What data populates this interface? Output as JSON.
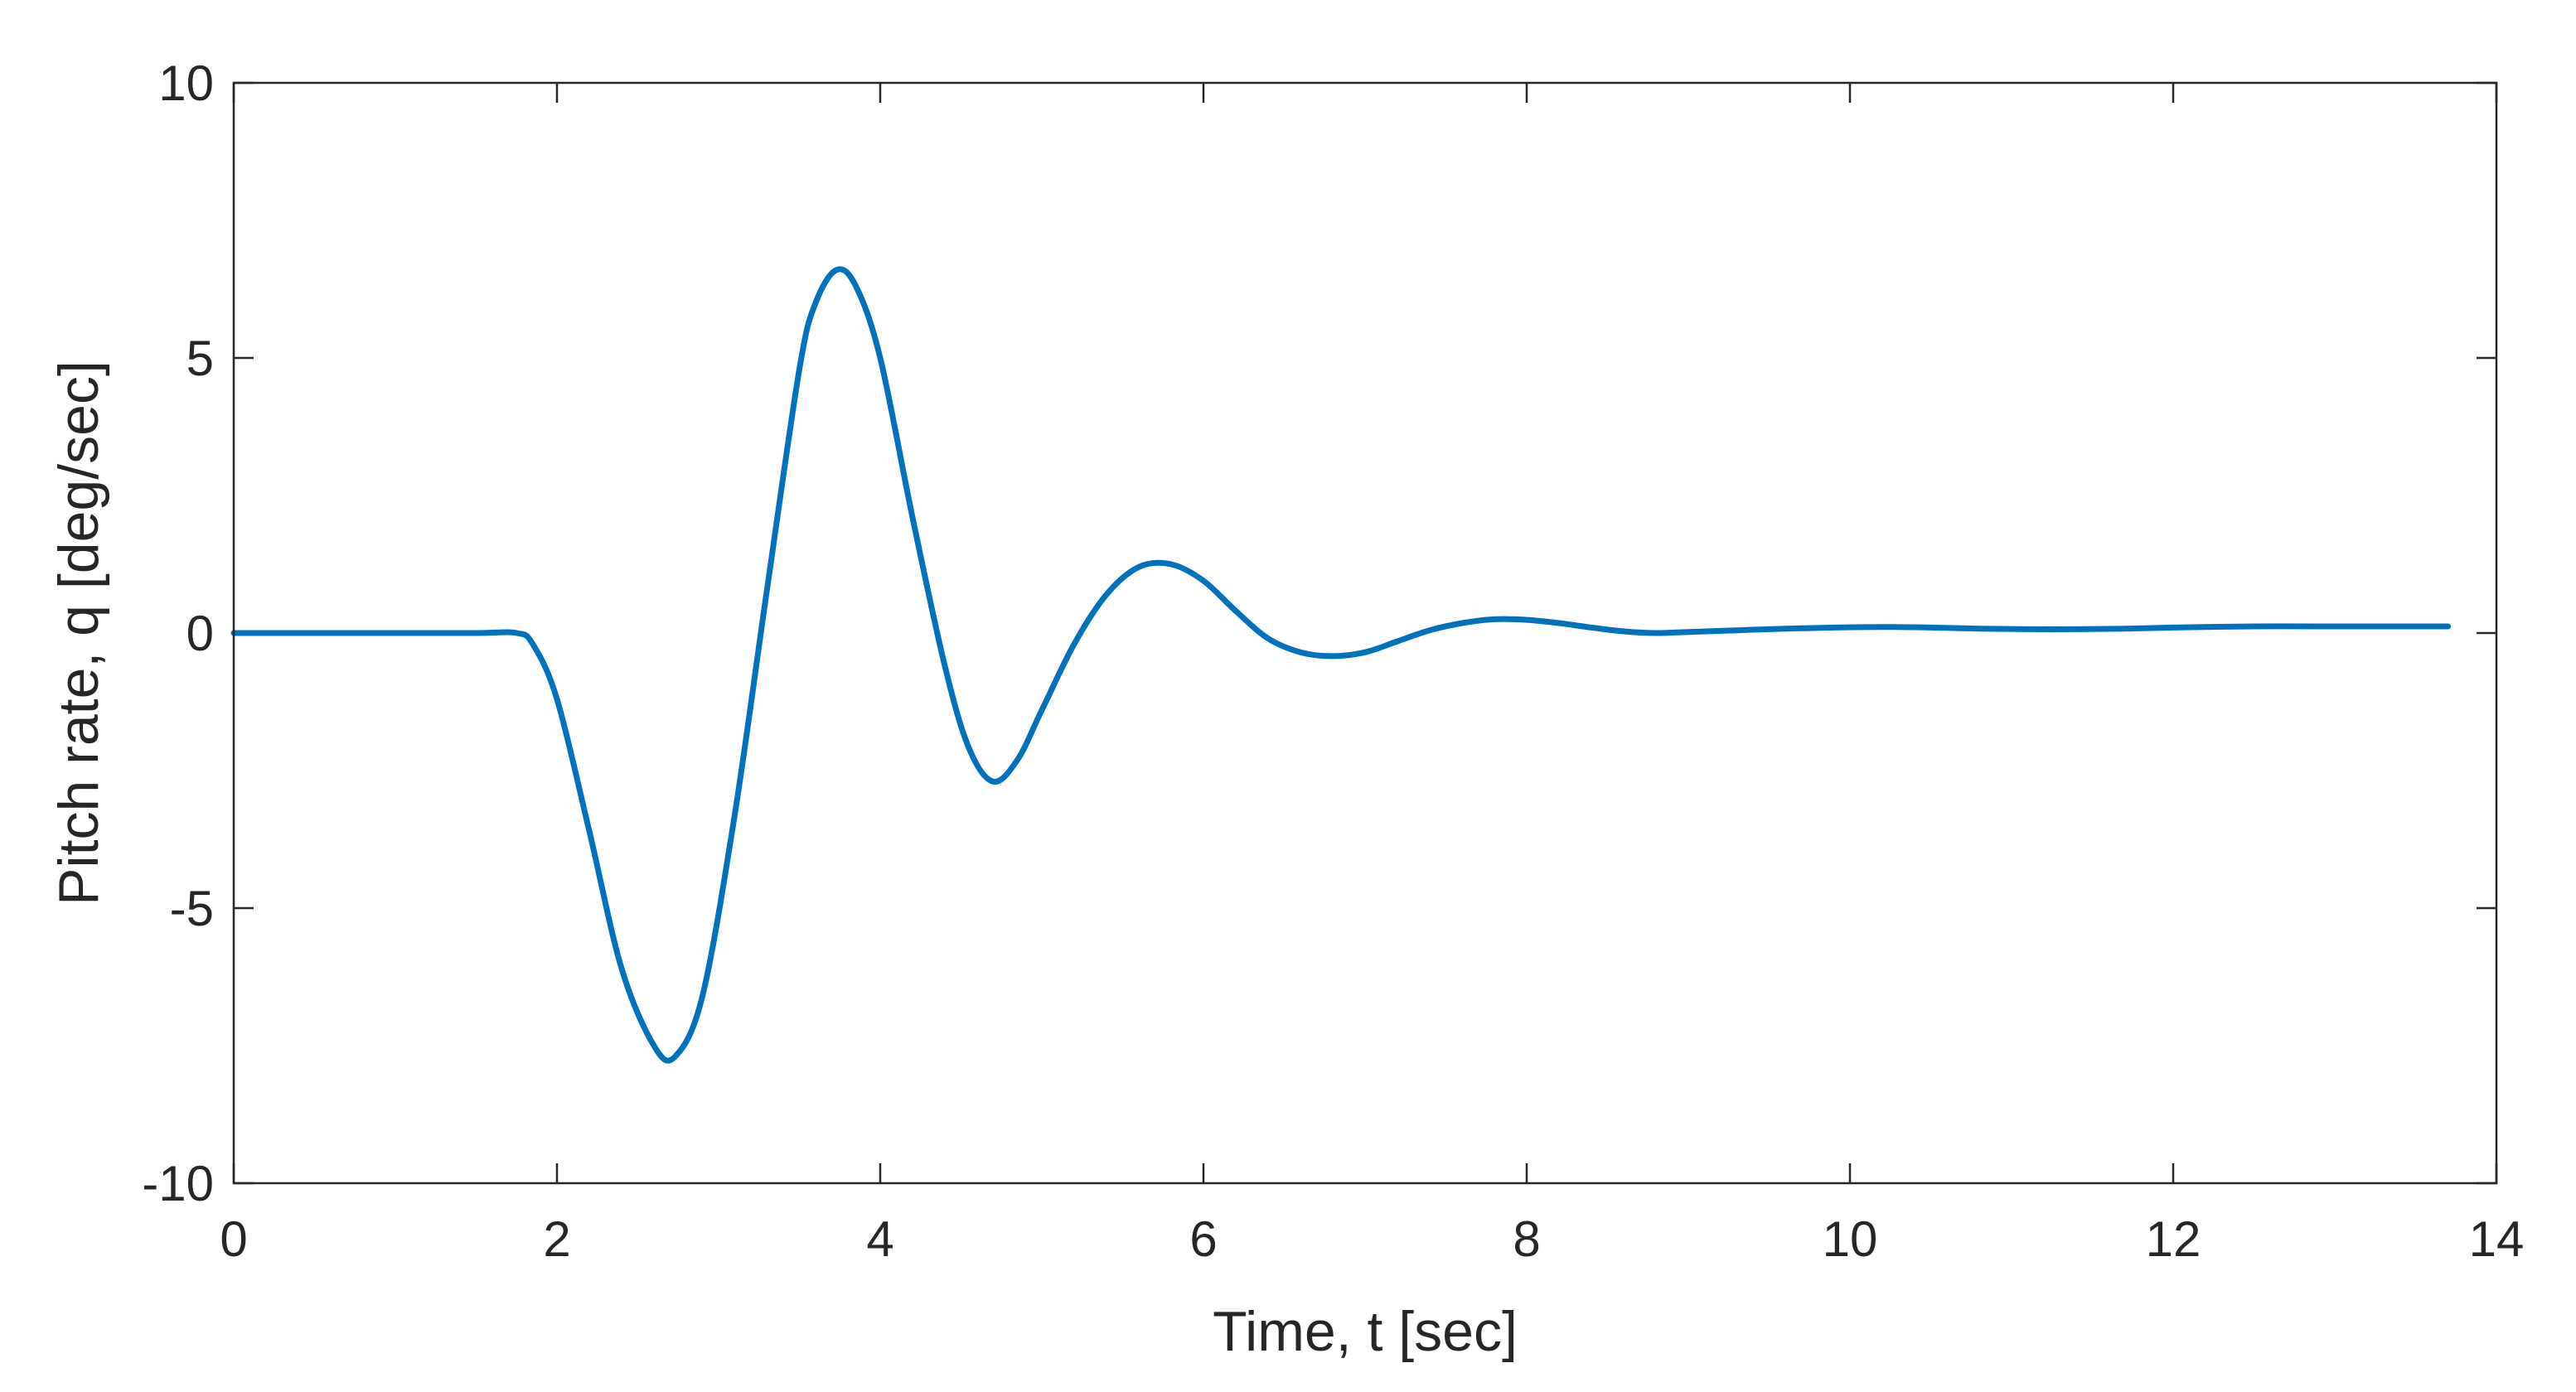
{
  "chart_data": {
    "type": "line",
    "title": "",
    "xlabel": "Time, t [sec]",
    "ylabel": "Pitch rate, q [deg/sec]",
    "xlim": [
      0,
      14
    ],
    "ylim": [
      -10,
      10
    ],
    "xticks": [
      0,
      2,
      4,
      6,
      8,
      10,
      12,
      14
    ],
    "yticks": [
      -10,
      -5,
      0,
      5,
      10
    ],
    "xtick_labels": [
      "0",
      "2",
      "4",
      "6",
      "8",
      "10",
      "12",
      "14"
    ],
    "ytick_labels": [
      "-10",
      "-5",
      "0",
      "5",
      "10"
    ],
    "grid": false,
    "legend": false,
    "line_color": "#0072BD",
    "axis_color": "#262626",
    "series": [
      {
        "x": [
          0,
          0.5,
          1.0,
          1.5,
          1.75,
          1.85,
          2.0,
          2.2,
          2.4,
          2.6,
          2.73,
          2.9,
          3.1,
          3.3,
          3.5,
          3.6,
          3.73,
          3.85,
          4.0,
          4.2,
          4.4,
          4.55,
          4.7,
          4.85,
          5.0,
          5.2,
          5.4,
          5.6,
          5.8,
          6.0,
          6.2,
          6.4,
          6.6,
          6.8,
          7.0,
          7.2,
          7.4,
          7.6,
          7.8,
          8.0,
          8.2,
          8.4,
          8.6,
          8.8,
          9.0,
          9.3,
          9.6,
          9.9,
          10.2,
          10.5,
          10.8,
          11.1,
          11.4,
          11.7,
          12.0,
          12.5,
          13.0,
          13.7
        ],
        "y": [
          0,
          0,
          0,
          0,
          0,
          -0.2,
          -1.2,
          -3.6,
          -6.1,
          -7.5,
          -7.7,
          -6.6,
          -3.3,
          0.8,
          4.8,
          6.0,
          6.6,
          6.3,
          5.0,
          2.1,
          -0.6,
          -2.1,
          -2.7,
          -2.3,
          -1.4,
          -0.2,
          0.7,
          1.2,
          1.25,
          0.95,
          0.4,
          -0.1,
          -0.35,
          -0.42,
          -0.35,
          -0.15,
          0.05,
          0.18,
          0.25,
          0.24,
          0.18,
          0.1,
          0.03,
          0.0,
          0.02,
          0.05,
          0.08,
          0.1,
          0.11,
          0.1,
          0.08,
          0.07,
          0.07,
          0.08,
          0.1,
          0.12,
          0.12,
          0.12
        ]
      }
    ]
  }
}
